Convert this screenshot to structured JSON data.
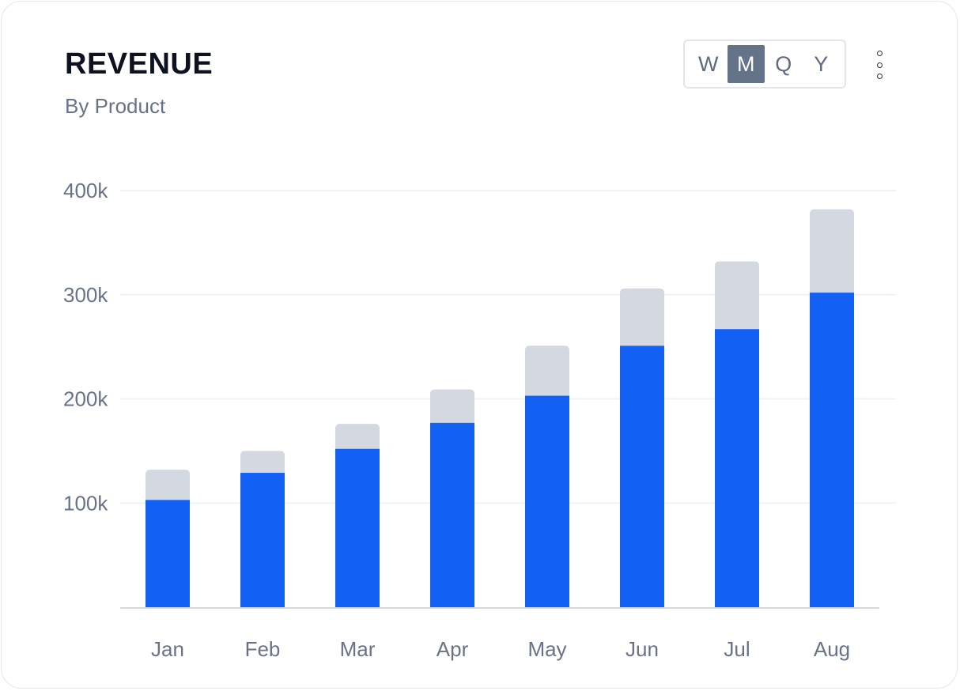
{
  "header": {
    "title": "REVENUE",
    "subtitle": "By Product"
  },
  "period_toggle": {
    "options": [
      "W",
      "M",
      "Q",
      "Y"
    ],
    "selected": "M"
  },
  "menu": {
    "icon": "kebab-menu-icon"
  },
  "colors": {
    "primary_series": "#1360f5",
    "secondary_series": "#d3d8e1",
    "grid": "#eceff3",
    "axis": "#d3d8df",
    "label": "#677387",
    "toggle_active": "#647388"
  },
  "chart_data": {
    "type": "bar",
    "stacked": true,
    "title": "REVENUE",
    "subtitle": "By Product",
    "categories": [
      "Jan",
      "Feb",
      "Mar",
      "Apr",
      "May",
      "Jun",
      "Jul",
      "Aug"
    ],
    "series": [
      {
        "values": [
          103000,
          129000,
          152000,
          177000,
          203000,
          251000,
          267000,
          302000
        ]
      },
      {
        "values": [
          29000,
          21000,
          24000,
          32000,
          48000,
          55000,
          65000,
          80000
        ]
      }
    ],
    "ylim": [
      0,
      400000
    ],
    "yticks": [
      100000,
      200000,
      300000,
      400000
    ],
    "ytick_labels": [
      "100k",
      "200k",
      "300k",
      "400k"
    ],
    "grid": true,
    "legend": "none",
    "xlabel": "",
    "ylabel": ""
  }
}
